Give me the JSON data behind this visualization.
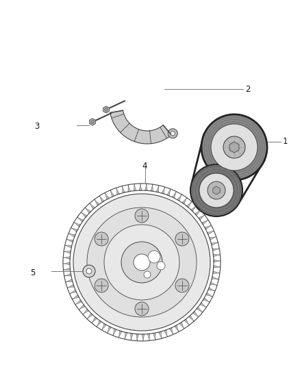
{
  "background_color": "#ffffff",
  "figsize": [
    4.38,
    5.33
  ],
  "dpi": 100,
  "line_color": "#444444",
  "light_gray": "#d8d8d8",
  "mid_gray": "#aaaaaa",
  "dark_gray": "#555555",
  "black": "#222222"
}
